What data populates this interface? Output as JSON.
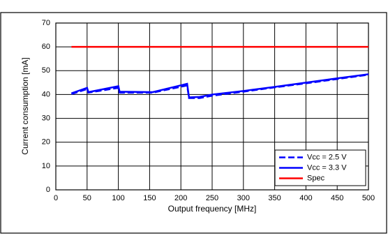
{
  "chart_data": {
    "type": "line",
    "xlabel": "Output frequency [MHz]",
    "ylabel": "Current consumption [mA]",
    "xlim": [
      0,
      500
    ],
    "xticks": [
      0,
      50,
      100,
      150,
      200,
      250,
      300,
      350,
      400,
      450,
      500
    ],
    "ylim": [
      0,
      70
    ],
    "yticks": [
      0,
      10,
      20,
      30,
      40,
      50,
      60,
      70
    ],
    "grid": true,
    "legend": "lower right",
    "series": [
      {
        "name": "Vcc = 2.5 V",
        "color": "#0000ff",
        "dashed": true,
        "x": [
          25,
          50,
          52,
          100,
          102,
          155,
          210,
          213,
          230,
          250,
          300,
          350,
          400,
          450,
          500
        ],
        "values": [
          40.2,
          42.3,
          40.8,
          42.8,
          40.8,
          40.8,
          43.8,
          38.5,
          38.5,
          39.5,
          41.2,
          43,
          44.7,
          46.5,
          48.3
        ]
      },
      {
        "name": "Vcc = 3.3 V",
        "color": "#0000ff",
        "dashed": false,
        "x": [
          25,
          50,
          52,
          100,
          102,
          155,
          210,
          213,
          230,
          250,
          300,
          350,
          400,
          450,
          500
        ],
        "values": [
          40.5,
          42.8,
          41,
          43.5,
          41.2,
          41,
          44.5,
          38.8,
          39,
          40,
          41.5,
          43.2,
          45,
          46.8,
          48.5
        ]
      },
      {
        "name": "Spec",
        "color": "#ff0000",
        "dashed": false,
        "x": [
          25,
          500
        ],
        "values": [
          60,
          60
        ]
      }
    ]
  }
}
